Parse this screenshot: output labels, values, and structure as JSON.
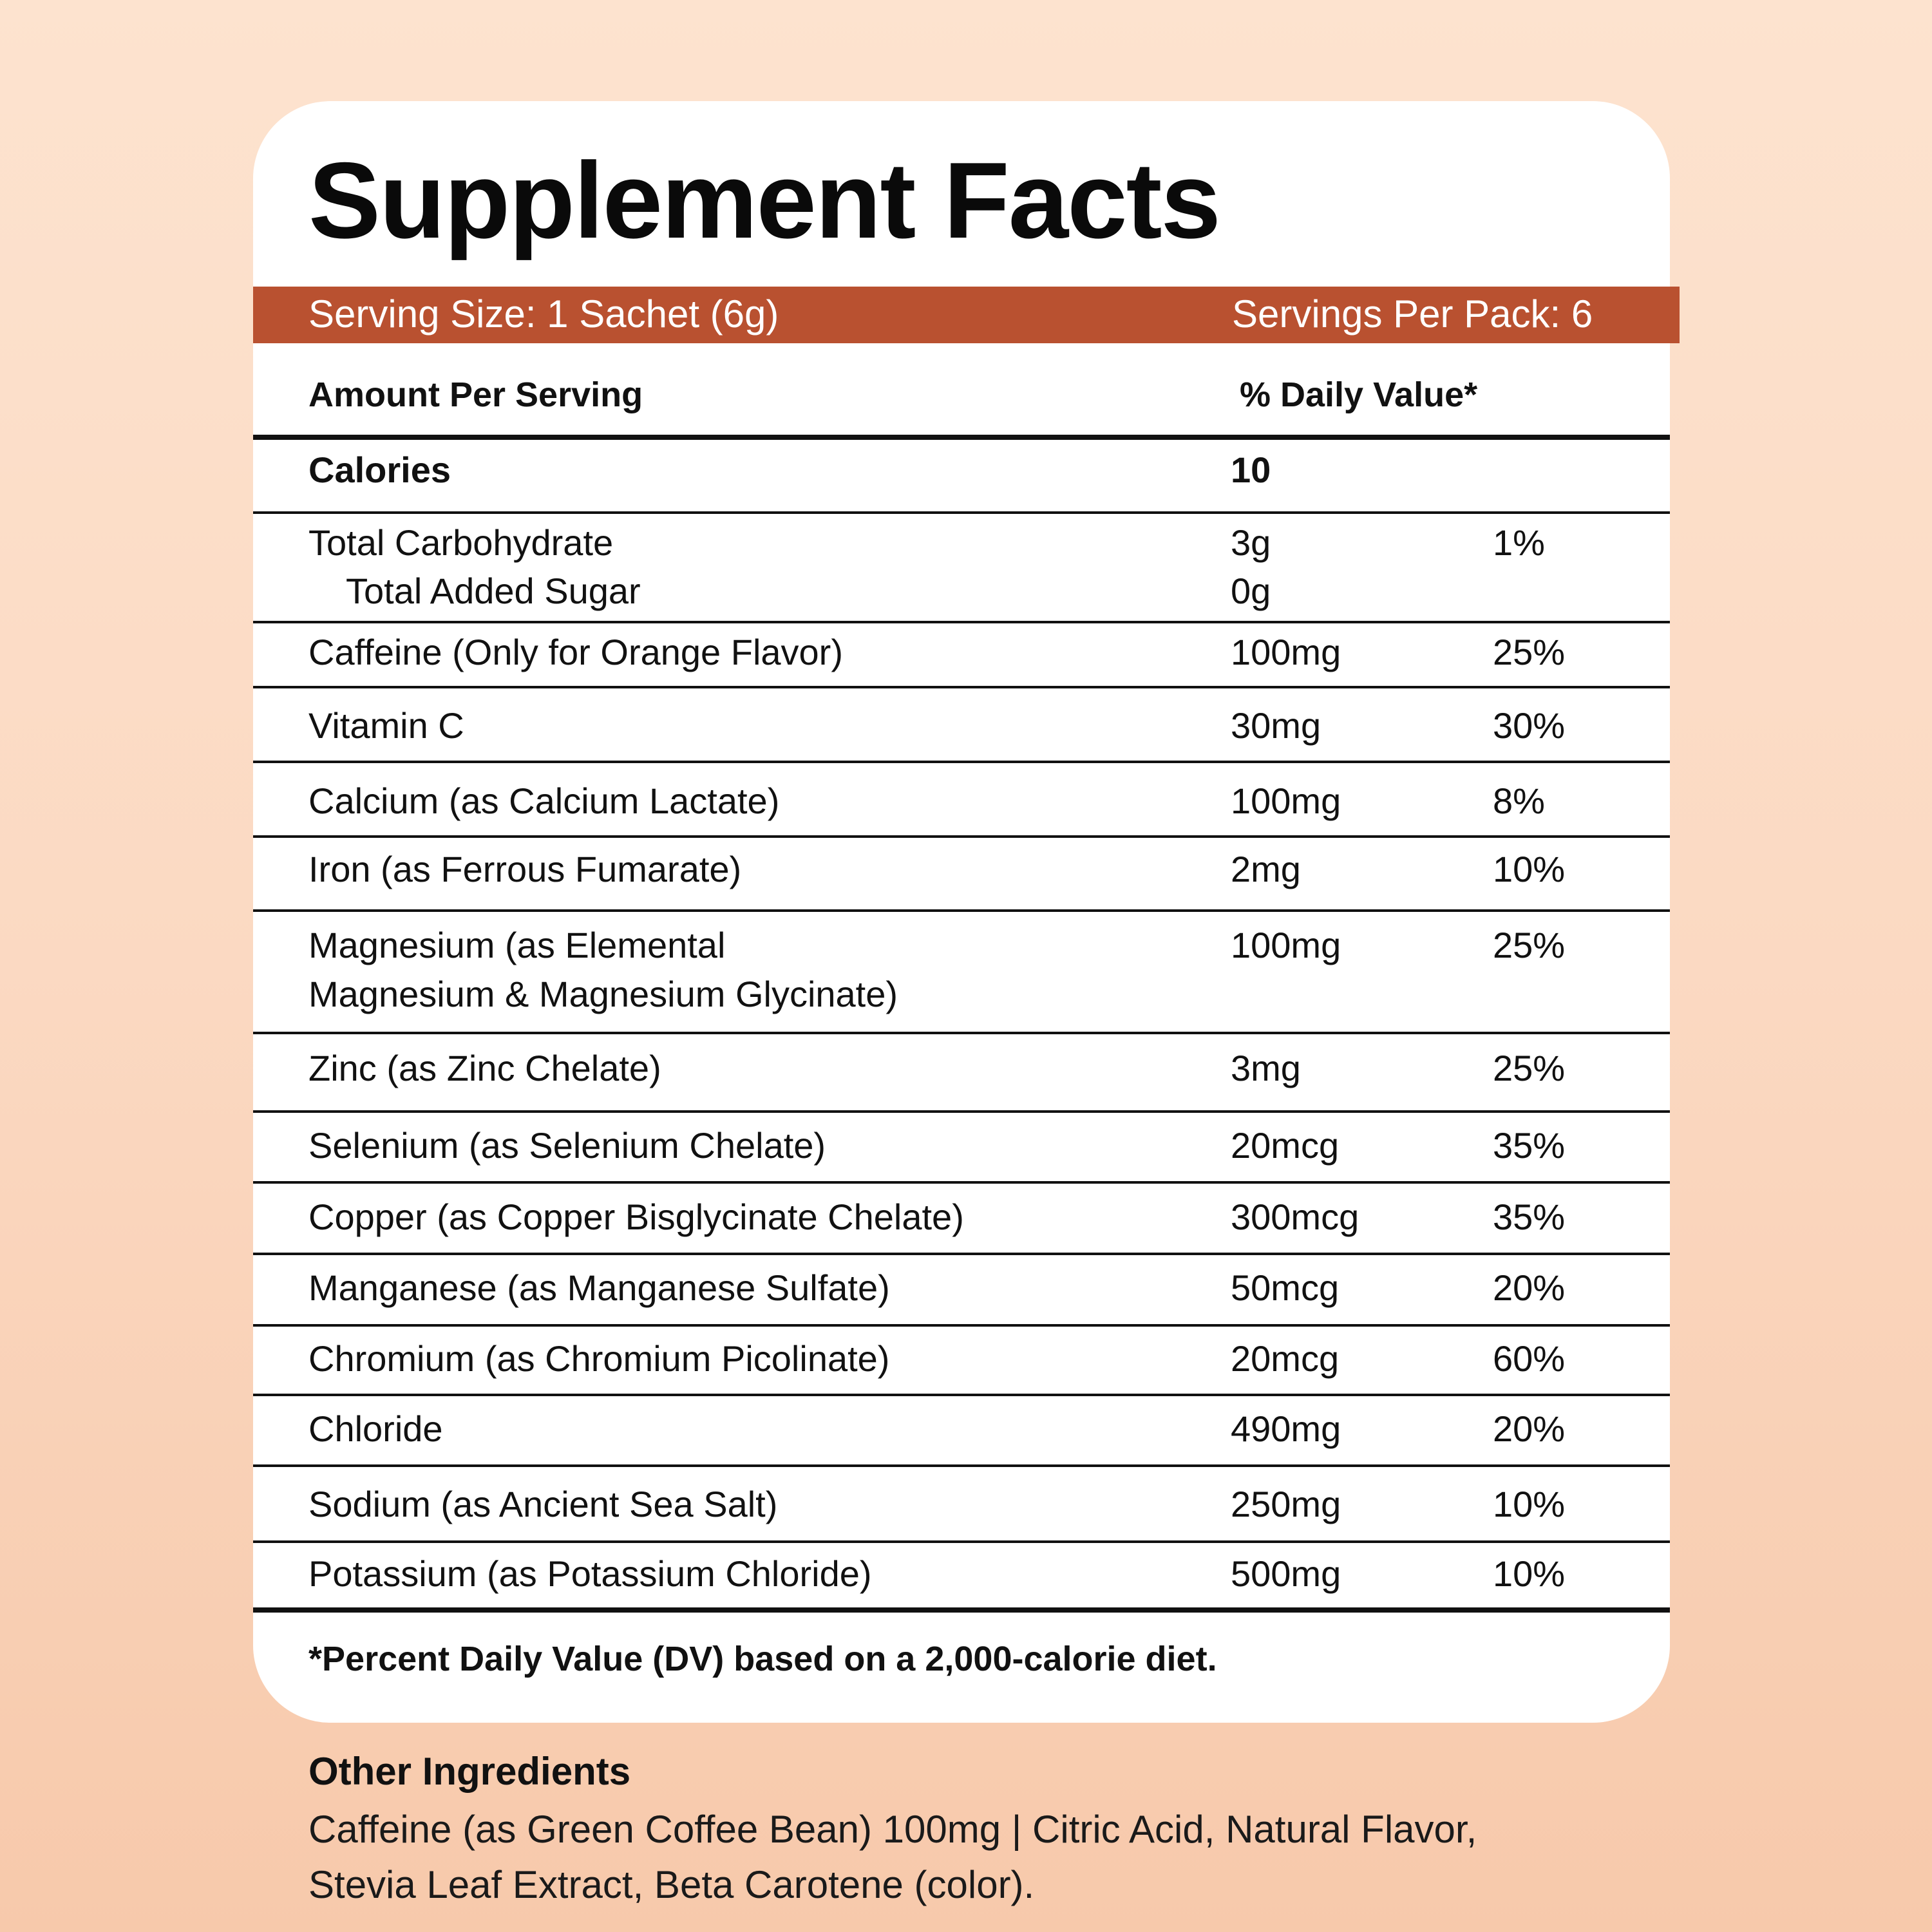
{
  "title": "Supplement Facts",
  "serving": {
    "size": "Serving Size: 1 Sachet (6g)",
    "per_pack": "Servings Per Pack: 6"
  },
  "header": {
    "amount": "Amount Per Serving",
    "daily_value": "% Daily Value*"
  },
  "calories": {
    "name": "Calories",
    "amount": "10"
  },
  "carbs": {
    "name": "Total Carbohydrate",
    "amount": "3g",
    "dv": "1%",
    "sub_name": "Total Added Sugar",
    "sub_amount": "0g"
  },
  "nutrients": [
    {
      "name": "Caffeine (Only for Orange Flavor)",
      "amount": "100mg",
      "dv": "25%"
    },
    {
      "name": "Vitamin C",
      "amount": "30mg",
      "dv": "30%"
    },
    {
      "name": "Calcium (as Calcium Lactate)",
      "amount": "100mg",
      "dv": "8%"
    },
    {
      "name": "Iron (as Ferrous Fumarate)",
      "amount": "2mg",
      "dv": "10%"
    },
    {
      "name": "Magnesium (as Elemental",
      "name2": "Magnesium & Magnesium Glycinate)",
      "amount": "100mg",
      "dv": "25%"
    },
    {
      "name": "Zinc (as Zinc Chelate)",
      "amount": "3mg",
      "dv": "25%"
    },
    {
      "name": "Selenium (as Selenium Chelate)",
      "amount": "20mcg",
      "dv": "35%"
    },
    {
      "name": "Copper (as Copper Bisglycinate Chelate)",
      "amount": "300mcg",
      "dv": "35%"
    },
    {
      "name": "Manganese (as Manganese Sulfate)",
      "amount": "50mcg",
      "dv": "20%"
    },
    {
      "name": "Chromium (as Chromium Picolinate)",
      "amount": "20mcg",
      "dv": "60%"
    },
    {
      "name": "Chloride",
      "amount": "490mg",
      "dv": "20%"
    },
    {
      "name": "Sodium (as Ancient Sea Salt)",
      "amount": "250mg",
      "dv": "10%"
    },
    {
      "name": "Potassium (as Potassium Chloride)",
      "amount": "500mg",
      "dv": "10%"
    }
  ],
  "footnote": "*Percent Daily Value (DV) based on a 2,000-calorie diet.",
  "other_ingredients": {
    "title": "Other Ingredients",
    "line1": "Caffeine (as Green Coffee Bean) 100mg | Citric Acid, Natural Flavor,",
    "line2": "Stevia Leaf Extract, Beta Carotene (color)."
  },
  "colors": {
    "accent": "#b95130",
    "background": "#fbd9c2",
    "card": "#ffffff"
  }
}
